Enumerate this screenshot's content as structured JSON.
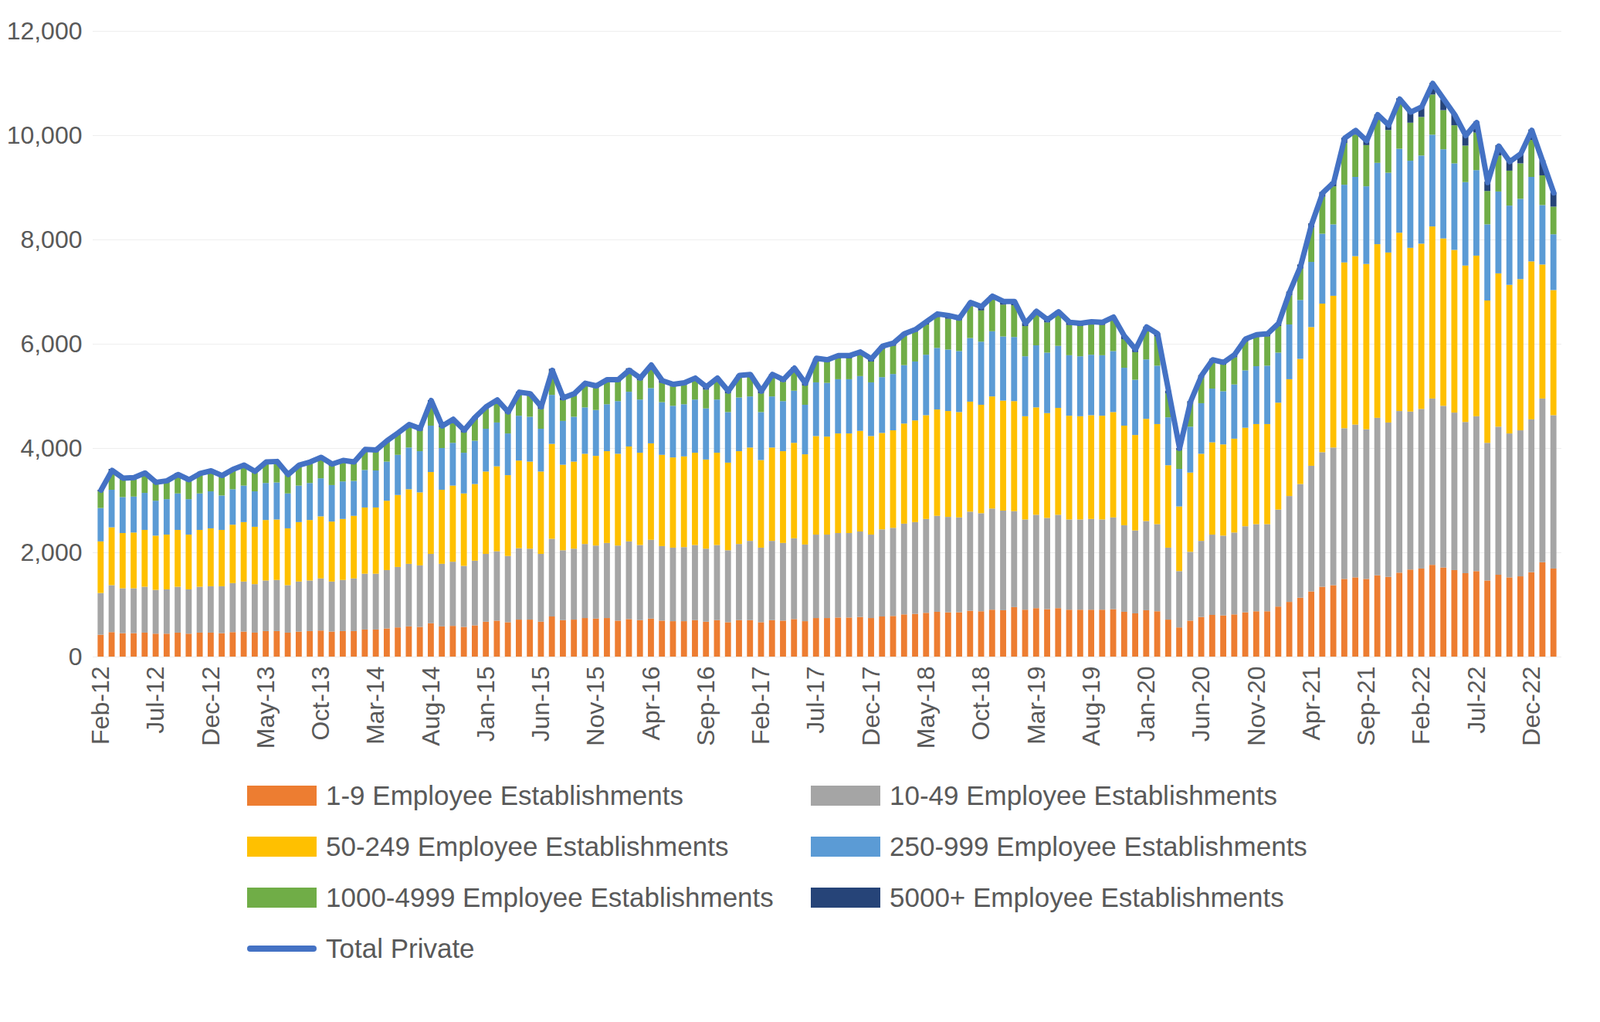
{
  "chart_data": {
    "type": "bar",
    "stacked": true,
    "grid": true,
    "legend": "bottom",
    "ylim": [
      0,
      12000
    ],
    "yticks": [
      0,
      2000,
      4000,
      6000,
      8000,
      10000,
      12000
    ],
    "categories": [
      "Feb-12",
      null,
      null,
      null,
      null,
      "Jul-12",
      null,
      null,
      null,
      null,
      "Dec-12",
      null,
      null,
      null,
      null,
      "May-13",
      null,
      null,
      null,
      null,
      "Oct-13",
      null,
      null,
      null,
      null,
      "Mar-14",
      null,
      null,
      null,
      null,
      "Aug-14",
      null,
      null,
      null,
      null,
      "Jan-15",
      null,
      null,
      null,
      null,
      "Jun-15",
      null,
      null,
      null,
      null,
      "Nov-15",
      null,
      null,
      null,
      null,
      "Apr-16",
      null,
      null,
      null,
      null,
      "Sep-16",
      null,
      null,
      null,
      null,
      "Feb-17",
      null,
      null,
      null,
      null,
      "Jul-17",
      null,
      null,
      null,
      null,
      "Dec-17",
      null,
      null,
      null,
      null,
      "May-18",
      null,
      null,
      null,
      null,
      "Oct-18",
      null,
      null,
      null,
      null,
      "Mar-19",
      null,
      null,
      null,
      null,
      "Aug-19",
      null,
      null,
      null,
      null,
      "Jan-20",
      null,
      null,
      null,
      null,
      "Jun-20",
      null,
      null,
      null,
      null,
      "Nov-20",
      null,
      null,
      null,
      null,
      "Apr-21",
      null,
      null,
      null,
      null,
      "Sep-21",
      null,
      null,
      null,
      null,
      "Feb-22",
      null,
      null,
      null,
      null,
      "Jul-22",
      null,
      null,
      null,
      null,
      "Dec-22",
      null,
      null
    ],
    "series": [
      {
        "name": "1-9 Employee Establishments",
        "color": "#ED7D31",
        "type": "bar",
        "values": [
          420,
          470,
          450,
          450,
          460,
          440,
          440,
          460,
          440,
          460,
          460,
          450,
          470,
          480,
          460,
          490,
          490,
          460,
          480,
          490,
          500,
          480,
          490,
          490,
          520,
          520,
          540,
          560,
          580,
          570,
          640,
          580,
          590,
          570,
          600,
          670,
          690,
          660,
          710,
          710,
          670,
          770,
          700,
          710,
          740,
          730,
          740,
          690,
          720,
          700,
          730,
          690,
          680,
          680,
          700,
          670,
          700,
          660,
          700,
          700,
          660,
          700,
          690,
          720,
          680,
          740,
          740,
          750,
          750,
          760,
          740,
          770,
          780,
          810,
          820,
          840,
          860,
          850,
          850,
          880,
          870,
          900,
          890,
          950,
          900,
          930,
          910,
          930,
          900,
          900,
          900,
          900,
          910,
          860,
          830,
          890,
          870,
          710,
          560,
          690,
          760,
          800,
          790,
          810,
          850,
          870,
          870,
          960,
          1050,
          1130,
          1250,
          1340,
          1370,
          1490,
          1520,
          1490,
          1560,
          1530,
          1610,
          1670,
          1690,
          1760,
          1710,
          1660,
          1600,
          1640,
          1460,
          1570,
          1520,
          1540,
          1620,
          1810,
          1690
        ]
      },
      {
        "name": "10-49 Employee Establishments",
        "color": "#A5A5A5",
        "type": "bar",
        "values": [
          800,
          900,
          860,
          860,
          880,
          840,
          850,
          880,
          850,
          880,
          890,
          900,
          940,
          960,
          930,
          970,
          980,
          910,
          960,
          970,
          1000,
          960,
          980,
          1010,
          1070,
          1070,
          1120,
          1160,
          1200,
          1180,
          1330,
          1200,
          1230,
          1170,
          1240,
          1300,
          1330,
          1270,
          1370,
          1360,
          1300,
          1490,
          1340,
          1360,
          1420,
          1400,
          1440,
          1440,
          1490,
          1440,
          1510,
          1430,
          1410,
          1420,
          1440,
          1400,
          1440,
          1380,
          1460,
          1520,
          1430,
          1520,
          1490,
          1550,
          1470,
          1600,
          1600,
          1620,
          1620,
          1640,
          1600,
          1670,
          1690,
          1740,
          1760,
          1800,
          1840,
          1830,
          1820,
          1900,
          1880,
          1940,
          1910,
          1840,
          1730,
          1790,
          1750,
          1790,
          1730,
          1730,
          1740,
          1730,
          1760,
          1660,
          1590,
          1710,
          1670,
          1380,
          1080,
          1320,
          1460,
          1540,
          1530,
          1570,
          1650,
          1670,
          1670,
          1860,
          2030,
          2180,
          2410,
          2580,
          2640,
          2890,
          2930,
          2870,
          3020,
          2960,
          3100,
          3030,
          3060,
          3190,
          3100,
          3020,
          2900,
          2970,
          2640,
          2840,
          2760,
          2800,
          2930,
          3140,
          2940
        ]
      },
      {
        "name": "50-249 Employee Establishments",
        "color": "#FFC000",
        "type": "bar",
        "values": [
          990,
          1110,
          1060,
          1070,
          1090,
          1040,
          1050,
          1090,
          1050,
          1090,
          1110,
          1080,
          1120,
          1140,
          1100,
          1160,
          1160,
          1090,
          1140,
          1160,
          1190,
          1150,
          1170,
          1200,
          1270,
          1270,
          1330,
          1380,
          1430,
          1400,
          1570,
          1420,
          1460,
          1390,
          1470,
          1580,
          1630,
          1550,
          1680,
          1670,
          1580,
          1820,
          1640,
          1670,
          1730,
          1720,
          1760,
          1760,
          1820,
          1770,
          1850,
          1750,
          1730,
          1740,
          1770,
          1710,
          1770,
          1680,
          1780,
          1790,
          1680,
          1790,
          1760,
          1830,
          1730,
          1890,
          1880,
          1910,
          1910,
          1930,
          1890,
          1850,
          1870,
          1920,
          1950,
          1990,
          2040,
          2030,
          2020,
          2110,
          2080,
          2150,
          2110,
          2110,
          1980,
          2060,
          2010,
          2050,
          1990,
          1980,
          1990,
          1990,
          2020,
          1910,
          1830,
          1960,
          1920,
          1580,
          1240,
          1520,
          1670,
          1770,
          1750,
          1800,
          1890,
          1920,
          1920,
          2050,
          2240,
          2400,
          2660,
          2850,
          2910,
          3180,
          3230,
          3170,
          3330,
          3260,
          3420,
          3140,
          3170,
          3300,
          3210,
          3120,
          3000,
          3080,
          2730,
          2940,
          2850,
          2900,
          3030,
          2570,
          2400
        ]
      },
      {
        "name": "250-999 Employee Establishments",
        "color": "#5B9BD5",
        "type": "bar",
        "values": [
          640,
          720,
          690,
          690,
          710,
          670,
          680,
          700,
          680,
          700,
          710,
          660,
          680,
          700,
          680,
          710,
          710,
          670,
          700,
          710,
          730,
          700,
          720,
          670,
          720,
          710,
          750,
          770,
          800,
          790,
          890,
          800,
          820,
          780,
          830,
          820,
          840,
          800,
          860,
          860,
          820,
          940,
          840,
          860,
          890,
          880,
          900,
          1010,
          1050,
          1020,
          1060,
          1010,
          990,
          1000,
          1020,
          980,
          1020,
          970,
          1030,
          980,
          920,
          980,
          960,
          1000,
          950,
          1030,
          1030,
          1040,
          1040,
          1050,
          1030,
          1070,
          1080,
          1120,
          1130,
          1160,
          1180,
          1180,
          1170,
          1220,
          1210,
          1250,
          1230,
          1230,
          1150,
          1190,
          1160,
          1190,
          1160,
          1150,
          1160,
          1160,
          1170,
          1110,
          1060,
          1140,
          1120,
          920,
          720,
          880,
          970,
          1030,
          1020,
          1040,
          1100,
          1110,
          1120,
          960,
          1050,
          1130,
          1250,
          1340,
          1370,
          1490,
          1520,
          1490,
          1560,
          1530,
          1610,
          1670,
          1690,
          1760,
          1710,
          1660,
          1600,
          1640,
          1460,
          1570,
          1520,
          1540,
          1620,
          1140,
          1070
        ]
      },
      {
        "name": "1000-4999 Employee Establishments",
        "color": "#70AD47",
        "type": "bar",
        "values": [
          320,
          360,
          340,
          340,
          350,
          340,
          340,
          350,
          340,
          350,
          360,
          350,
          360,
          370,
          360,
          370,
          380,
          350,
          370,
          370,
          380,
          370,
          380,
          340,
          360,
          360,
          370,
          390,
          400,
          390,
          440,
          400,
          410,
          390,
          410,
          380,
          390,
          380,
          410,
          400,
          380,
          440,
          400,
          400,
          420,
          420,
          430,
          370,
          390,
          370,
          390,
          370,
          370,
          370,
          370,
          360,
          370,
          360,
          380,
          380,
          360,
          380,
          370,
          390,
          370,
          400,
          400,
          400,
          400,
          410,
          400,
          540,
          540,
          560,
          570,
          580,
          590,
          590,
          590,
          610,
          600,
          620,
          610,
          610,
          580,
          600,
          580,
          600,
          580,
          580,
          580,
          580,
          590,
          550,
          530,
          570,
          560,
          460,
          360,
          440,
          490,
          510,
          510,
          520,
          550,
          560,
          560,
          510,
          560,
          600,
          660,
          710,
          730,
          800,
          810,
          790,
          830,
          820,
          860,
          730,
          740,
          770,
          750,
          730,
          700,
          720,
          640,
          690,
          670,
          680,
          710,
          570,
          530
        ]
      },
      {
        "name": "5000+ Employee Establishments",
        "color": "#264478",
        "type": "bar",
        "values": [
          30,
          40,
          30,
          30,
          40,
          30,
          30,
          40,
          30,
          40,
          40,
          30,
          40,
          40,
          40,
          40,
          40,
          40,
          40,
          40,
          40,
          40,
          40,
          40,
          40,
          40,
          40,
          40,
          40,
          40,
          50,
          40,
          50,
          40,
          50,
          50,
          50,
          50,
          50,
          50,
          50,
          60,
          50,
          50,
          50,
          50,
          50,
          50,
          60,
          50,
          60,
          50,
          50,
          50,
          50,
          50,
          50,
          50,
          50,
          50,
          50,
          50,
          50,
          60,
          50,
          60,
          60,
          60,
          60,
          60,
          60,
          60,
          60,
          60,
          60,
          60,
          70,
          70,
          70,
          70,
          70,
          70,
          70,
          70,
          60,
          70,
          60,
          70,
          60,
          60,
          60,
          60,
          70,
          60,
          60,
          60,
          60,
          50,
          40,
          50,
          50,
          60,
          60,
          60,
          60,
          60,
          60,
          60,
          70,
          80,
          80,
          90,
          90,
          100,
          100,
          100,
          100,
          100,
          110,
          210,
          210,
          220,
          210,
          210,
          200,
          210,
          180,
          200,
          190,
          190,
          200,
          290,
          270
        ]
      },
      {
        "name": "Total Private",
        "color": "#4472C4",
        "type": "line",
        "values": [
          3200,
          3580,
          3430,
          3440,
          3530,
          3350,
          3380,
          3500,
          3400,
          3520,
          3570,
          3480,
          3600,
          3680,
          3560,
          3740,
          3750,
          3500,
          3680,
          3740,
          3830,
          3700,
          3770,
          3740,
          3980,
          3970,
          4150,
          4300,
          4460,
          4380,
          4920,
          4430,
          4560,
          4350,
          4600,
          4800,
          4930,
          4700,
          5080,
          5050,
          4800,
          5500,
          4970,
          5050,
          5250,
          5200,
          5320,
          5320,
          5500,
          5350,
          5600,
          5300,
          5230,
          5260,
          5350,
          5180,
          5350,
          5100,
          5400,
          5420,
          5100,
          5420,
          5320,
          5540,
          5250,
          5730,
          5700,
          5780,
          5780,
          5850,
          5720,
          5960,
          6020,
          6200,
          6280,
          6430,
          6580,
          6550,
          6500,
          6800,
          6720,
          6920,
          6820,
          6820,
          6400,
          6630,
          6470,
          6620,
          6420,
          6400,
          6430,
          6420,
          6520,
          6150,
          5900,
          6330,
          6200,
          5100,
          4000,
          4900,
          5400,
          5700,
          5650,
          5800,
          6100,
          6180,
          6200,
          6400,
          7000,
          7500,
          8300,
          8900,
          9100,
          9950,
          10100,
          9900,
          10400,
          10200,
          10700,
          10450,
          10550,
          11000,
          10700,
          10400,
          10000,
          10250,
          9100,
          9800,
          9500,
          9650,
          10100,
          9500,
          8900
        ]
      }
    ]
  }
}
